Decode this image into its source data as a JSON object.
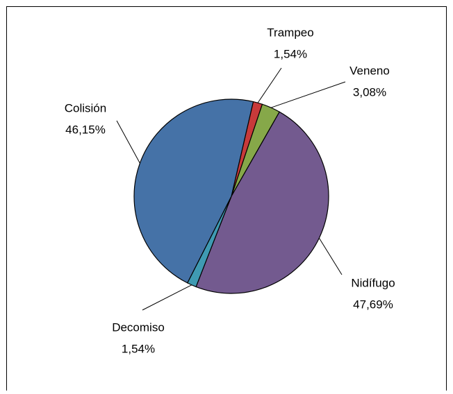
{
  "chart_data": {
    "type": "pie",
    "categories": [
      "Trampeo",
      "Veneno",
      "Nidífugo",
      "Decomiso",
      "Colisión"
    ],
    "values": [
      1.54,
      3.08,
      47.69,
      1.54,
      46.15
    ],
    "value_labels": [
      "1,54%",
      "3,08%",
      "47,69%",
      "1,54%",
      "46,15%"
    ],
    "colors": [
      "#c73a3a",
      "#86a849",
      "#735a8f",
      "#3f9ab2",
      "#4572a7"
    ]
  }
}
